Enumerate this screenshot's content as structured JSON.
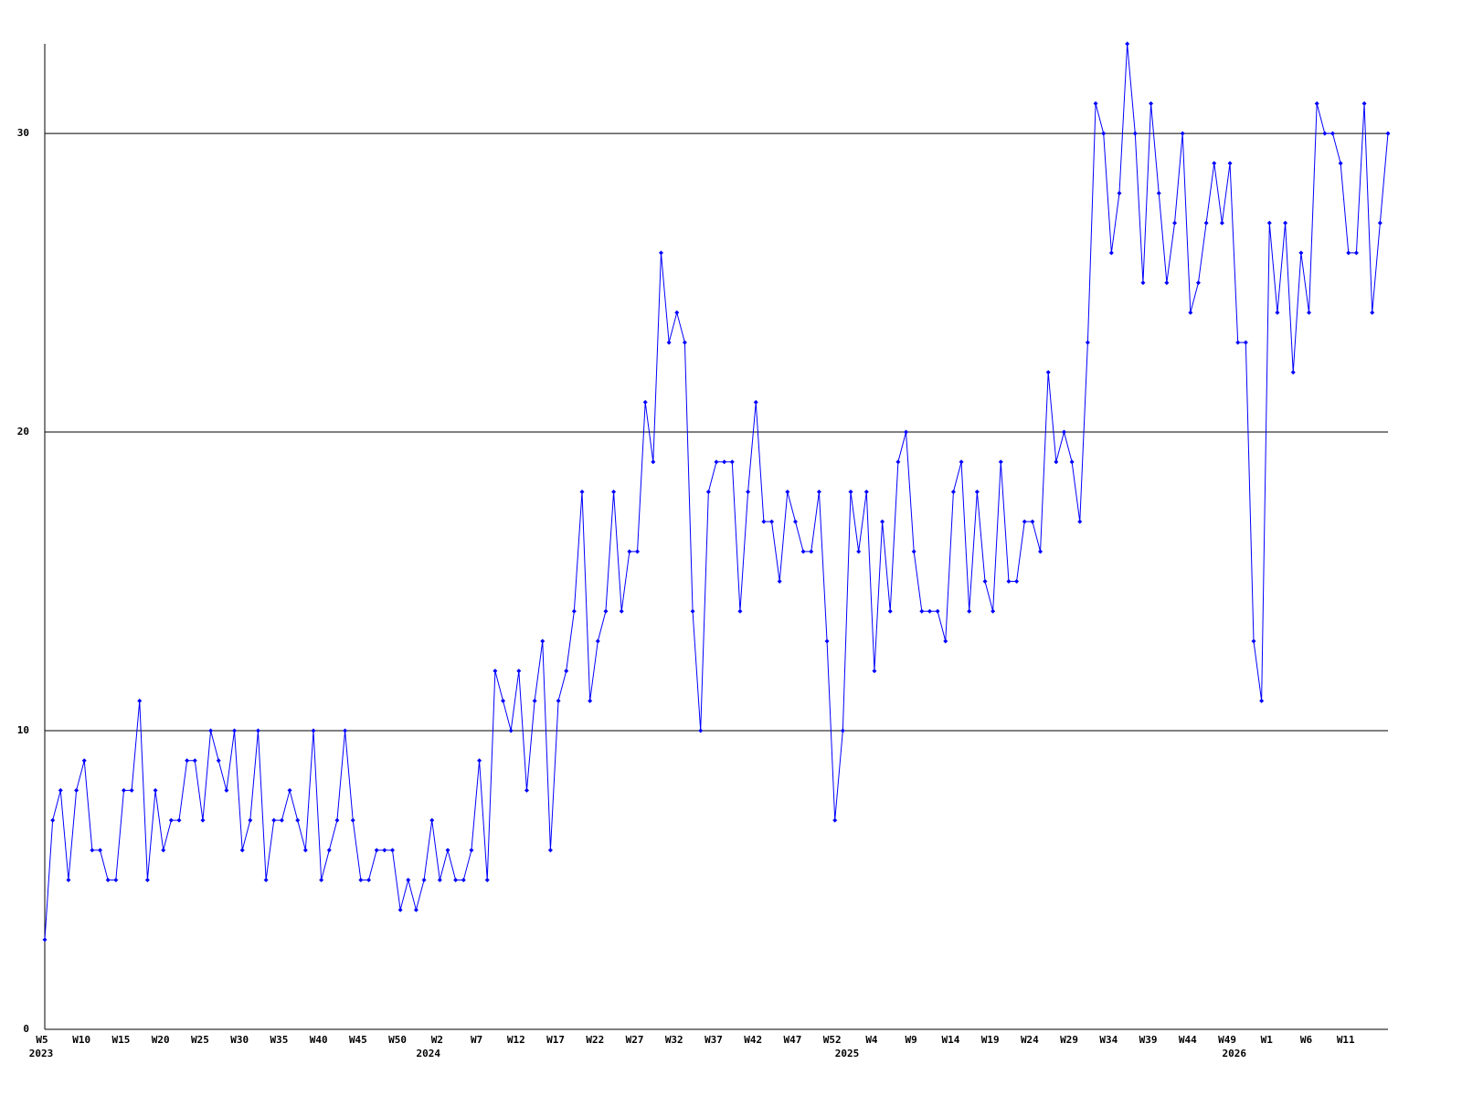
{
  "chart_data": {
    "type": "line",
    "categories": [
      "W5",
      null,
      null,
      null,
      null,
      "W10",
      null,
      null,
      null,
      null,
      "W15",
      null,
      null,
      null,
      null,
      "W20",
      null,
      null,
      null,
      null,
      "W25",
      null,
      null,
      null,
      null,
      "W30",
      null,
      null,
      null,
      null,
      "W35",
      null,
      null,
      null,
      null,
      "W40",
      null,
      null,
      null,
      null,
      "W45",
      null,
      null,
      null,
      null,
      "W50",
      null,
      null,
      null,
      null,
      "W2",
      null,
      null,
      null,
      null,
      "W7",
      null,
      null,
      null,
      null,
      "W12",
      null,
      null,
      null,
      null,
      "W17",
      null,
      null,
      null,
      null,
      "W22",
      null,
      null,
      null,
      null,
      "W27",
      null,
      null,
      null,
      null,
      "W32",
      null,
      null,
      null,
      null,
      "W37",
      null,
      null,
      null,
      null,
      "W42",
      null,
      null,
      null,
      null,
      "W47",
      null,
      null,
      null,
      null,
      "W52",
      null,
      null,
      null,
      null,
      "W4",
      null,
      null,
      null,
      null,
      "W9",
      null,
      null,
      null,
      null,
      "W14",
      null,
      null,
      null,
      null,
      "W19",
      null,
      null,
      null,
      null,
      "W24",
      null,
      null,
      null,
      null,
      "W29",
      null,
      null,
      null,
      null,
      "W34",
      null,
      null,
      null,
      null,
      "W39",
      null,
      null,
      null,
      null,
      "W44",
      null,
      null,
      null,
      null,
      "W49",
      null,
      null,
      null,
      null,
      "W1",
      null,
      null,
      null,
      null,
      "W6",
      null,
      null,
      null,
      null,
      "W11",
      null,
      null,
      null,
      null,
      null
    ],
    "category_years": [
      "2023",
      null,
      null,
      null,
      null,
      null,
      null,
      null,
      null,
      null,
      null,
      null,
      null,
      null,
      null,
      null,
      null,
      null,
      null,
      null,
      null,
      null,
      null,
      null,
      null,
      null,
      null,
      null,
      null,
      null,
      null,
      null,
      null,
      null,
      null,
      null,
      null,
      null,
      null,
      null,
      null,
      null,
      null,
      null,
      null,
      null,
      null,
      null,
      null,
      "2024",
      null,
      null,
      null,
      null,
      null,
      null,
      null,
      null,
      null,
      null,
      null,
      null,
      null,
      null,
      null,
      null,
      null,
      null,
      null,
      null,
      null,
      null,
      null,
      null,
      null,
      null,
      null,
      null,
      null,
      null,
      null,
      null,
      null,
      null,
      null,
      null,
      null,
      null,
      null,
      null,
      null,
      null,
      null,
      null,
      null,
      null,
      null,
      null,
      null,
      null,
      null,
      null,
      "2025",
      null,
      null,
      null,
      null,
      null,
      null,
      null,
      null,
      null,
      null,
      null,
      null,
      null,
      null,
      null,
      null,
      null,
      null,
      null,
      null,
      null,
      null,
      null,
      null,
      null,
      null,
      null,
      null,
      null,
      null,
      null,
      null,
      null,
      null,
      null,
      null,
      null,
      null,
      null,
      null,
      null,
      null,
      null,
      null,
      null,
      null,
      null,
      null,
      "2026",
      null,
      null,
      null,
      null,
      null,
      null,
      null,
      null,
      null,
      null,
      null,
      null,
      null,
      null,
      null
    ],
    "values": [
      3,
      7,
      8,
      5,
      8,
      9,
      6,
      6,
      5,
      5,
      8,
      8,
      11,
      5,
      8,
      6,
      7,
      7,
      9,
      9,
      7,
      10,
      9,
      8,
      10,
      6,
      7,
      10,
      5,
      7,
      7,
      8,
      7,
      6,
      10,
      5,
      6,
      7,
      10,
      7,
      5,
      5,
      6,
      6,
      6,
      4,
      5,
      4,
      5,
      7,
      5,
      6,
      5,
      5,
      6,
      9,
      5,
      12,
      11,
      10,
      12,
      8,
      11,
      13,
      6,
      11,
      12,
      14,
      18,
      11,
      13,
      14,
      18,
      14,
      16,
      16,
      21,
      19,
      26,
      23,
      24,
      23,
      14,
      10,
      18,
      19,
      19,
      19,
      14,
      18,
      21,
      17,
      17,
      15,
      18,
      17,
      16,
      16,
      18,
      13,
      7,
      10,
      18,
      16,
      18,
      12,
      17,
      14,
      19,
      20,
      16,
      14,
      14,
      14,
      13,
      18,
      19,
      14,
      18,
      15,
      14,
      19,
      15,
      15,
      17,
      17,
      16,
      22,
      19,
      20,
      19,
      17,
      23,
      31,
      30,
      26,
      28,
      33,
      30,
      25,
      31,
      28,
      25,
      27,
      30,
      24,
      25,
      27,
      29,
      27,
      29,
      23,
      23,
      13,
      11,
      27,
      24,
      27,
      22,
      26,
      24,
      31,
      30,
      30,
      29,
      26,
      26,
      31,
      24,
      27,
      30
    ],
    "color": "#0000ff",
    "ylim": [
      0,
      33
    ],
    "yticks": [
      0,
      10,
      20,
      30
    ],
    "grid": true
  }
}
